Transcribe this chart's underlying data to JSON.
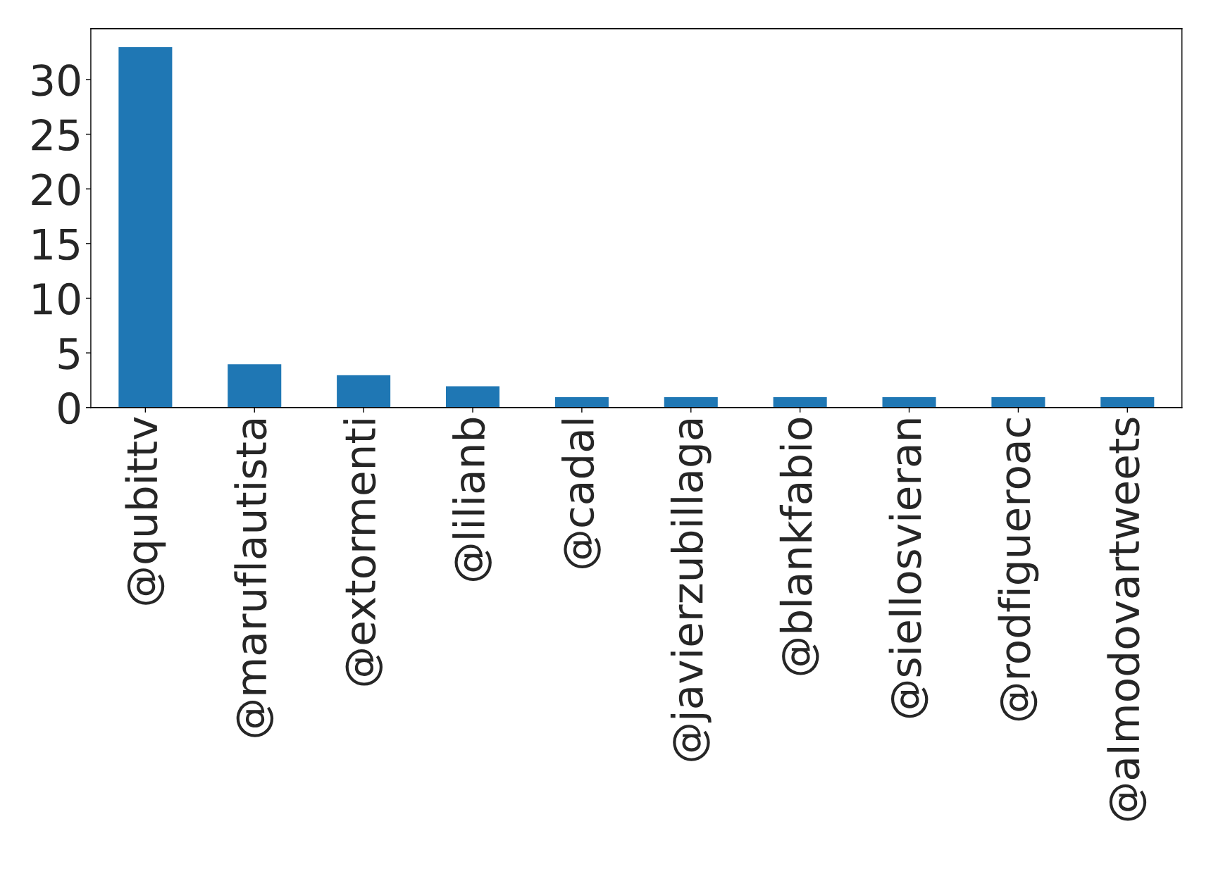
{
  "chart_data": {
    "type": "bar",
    "categories": [
      "@qubittv",
      "@maruflautista",
      "@extormenti",
      "@lilianb",
      "@cadal",
      "@javierzubillaga",
      "@blankfabio",
      "@siellosvieran",
      "@rodfigueroac",
      "@almodovartweets"
    ],
    "values": [
      33,
      4,
      3,
      2,
      1,
      1,
      1,
      1,
      1,
      1
    ],
    "color": "#1f77b4",
    "ylim": [
      0,
      34.65
    ],
    "yticks": [
      0,
      5,
      10,
      15,
      20,
      25,
      30
    ],
    "grid": false,
    "legend": false
  }
}
